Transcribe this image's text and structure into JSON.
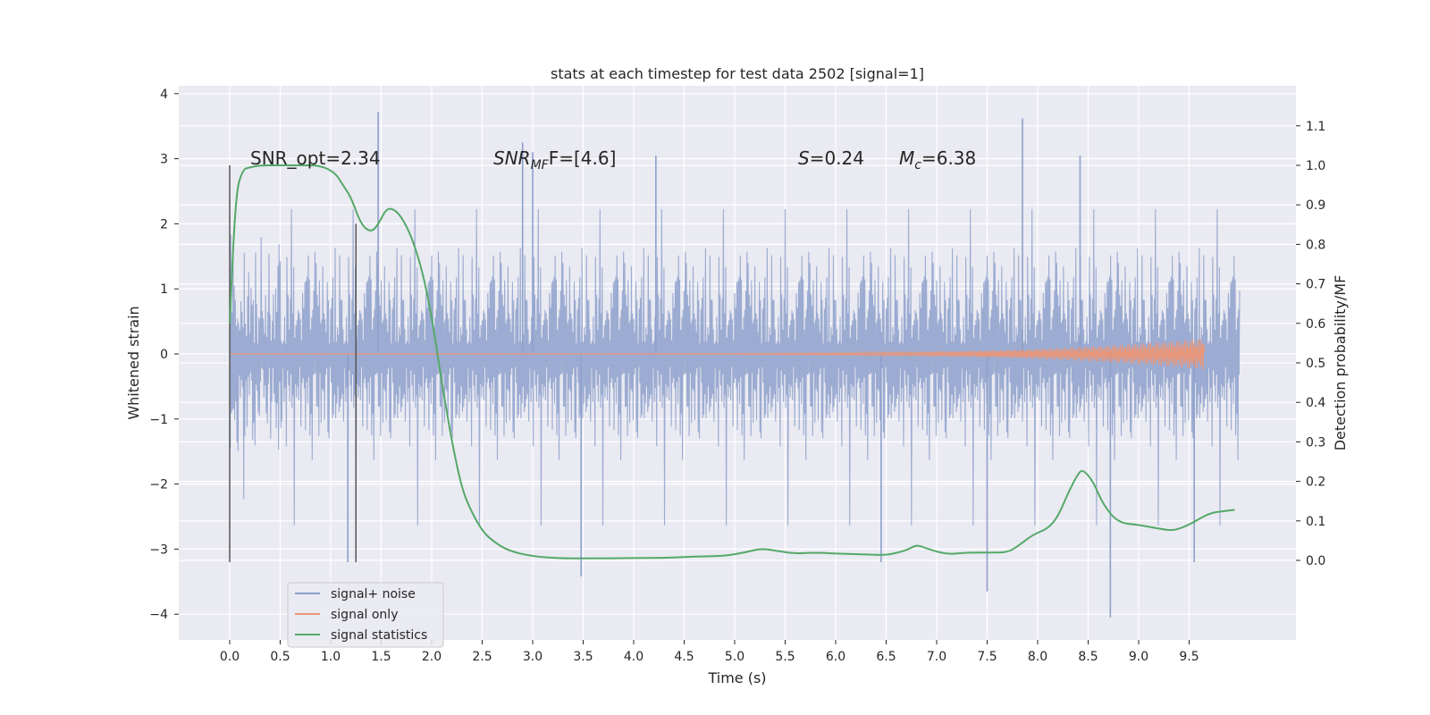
{
  "chart_data": {
    "type": "line",
    "title": "stats at each timestep for test data 2502 [signal=1]",
    "xlabel": "Time (s)",
    "ylabel_left": "Whitened strain",
    "ylabel_right": "Detection probability/MF",
    "xlim": [
      -0.5,
      10.5
    ],
    "ylim_left": [
      -4.4,
      4.1
    ],
    "ylim_right": [
      -0.2,
      1.2
    ],
    "grid": true,
    "legend_position": "lower-left",
    "x_ticks": [
      "0.0",
      "0.5",
      "1.0",
      "1.5",
      "2.0",
      "2.5",
      "3.0",
      "3.5",
      "4.0",
      "4.5",
      "5.0",
      "5.5",
      "6.0",
      "6.5",
      "7.0",
      "7.5",
      "8.0",
      "8.5",
      "9.0",
      "9.5"
    ],
    "y_left_ticks": [
      "−4",
      "−3",
      "−2",
      "−1",
      "0",
      "1",
      "2",
      "3",
      "4"
    ],
    "y_right_ticks": [
      "0.0",
      "0.1",
      "0.2",
      "0.3",
      "0.4",
      "0.5",
      "0.6",
      "0.7",
      "0.8",
      "0.9",
      "1.0",
      "1.1"
    ],
    "annotations": [
      {
        "key": "snr_opt",
        "label": "SNR_opt=2.34"
      },
      {
        "key": "snr_mf",
        "label_main": "SNR",
        "label_sub": "MF",
        "label_rest": "F=[4.6]"
      },
      {
        "key": "s",
        "label_italic": "S",
        "label_rest": "=0.24"
      },
      {
        "key": "mc",
        "label_italic": "M",
        "label_sub": "c",
        "label_rest": "=6.38"
      }
    ],
    "vertical_markers": [
      {
        "x": 0.0,
        "y_range": [
          -3.2,
          2.9
        ]
      },
      {
        "x": 1.25,
        "y_range": [
          -3.2,
          2.0
        ]
      }
    ],
    "series": [
      {
        "name": "signal+ noise",
        "color": "#8da0cb",
        "kind": "noise_band",
        "x_range": [
          0.0,
          10.0
        ],
        "typical_envelope": [
          -1.5,
          1.7
        ],
        "peaks": [
          {
            "x": 1.47,
            "y": 3.72
          },
          {
            "x": 7.85,
            "y": 3.62
          },
          {
            "x": 2.9,
            "y": 3.25
          },
          {
            "x": 3.0,
            "y": 3.1
          },
          {
            "x": 8.42,
            "y": 3.05
          },
          {
            "x": 4.22,
            "y": 3.05
          },
          {
            "x": 8.72,
            "y": -4.05
          },
          {
            "x": 7.5,
            "y": -3.65
          },
          {
            "x": 3.48,
            "y": -3.42
          },
          {
            "x": 1.17,
            "y": -3.2
          },
          {
            "x": 9.55,
            "y": -3.2
          },
          {
            "x": 6.45,
            "y": -3.2
          }
        ]
      },
      {
        "name": "signal only",
        "color": "#e8967a",
        "kind": "chirp",
        "x_range": [
          0.0,
          9.65
        ],
        "amplitude_at_end": 0.24
      },
      {
        "name": "signal statistics",
        "color": "#55a868",
        "axis": "right",
        "x": [
          0.0,
          0.06,
          0.13,
          0.2,
          0.3,
          0.5,
          0.7,
          0.9,
          1.05,
          1.12,
          1.2,
          1.3,
          1.4,
          1.47,
          1.55,
          1.62,
          1.7,
          1.8,
          1.9,
          2.0,
          2.1,
          2.2,
          2.3,
          2.4,
          2.5,
          2.6,
          2.75,
          3.0,
          3.3,
          3.6,
          4.0,
          4.3,
          4.6,
          4.9,
          5.1,
          5.25,
          5.4,
          5.6,
          5.8,
          6.0,
          6.3,
          6.5,
          6.7,
          6.8,
          6.9,
          7.1,
          7.3,
          7.5,
          7.7,
          7.8,
          7.95,
          8.1,
          8.2,
          8.3,
          8.4,
          8.45,
          8.55,
          8.65,
          8.8,
          9.0,
          9.2,
          9.35,
          9.5,
          9.7,
          9.85,
          9.95
        ],
        "values": [
          0.6,
          0.93,
          0.99,
          0.995,
          1.0,
          1.0,
          1.0,
          1.0,
          0.98,
          0.95,
          0.92,
          0.85,
          0.83,
          0.85,
          0.89,
          0.89,
          0.87,
          0.82,
          0.74,
          0.62,
          0.45,
          0.3,
          0.18,
          0.12,
          0.075,
          0.05,
          0.025,
          0.01,
          0.005,
          0.005,
          0.006,
          0.006,
          0.01,
          0.011,
          0.02,
          0.03,
          0.025,
          0.017,
          0.02,
          0.017,
          0.015,
          0.013,
          0.025,
          0.04,
          0.03,
          0.015,
          0.02,
          0.02,
          0.02,
          0.035,
          0.065,
          0.08,
          0.11,
          0.17,
          0.22,
          0.23,
          0.2,
          0.14,
          0.095,
          0.09,
          0.08,
          0.075,
          0.09,
          0.12,
          0.125,
          0.128
        ]
      }
    ]
  }
}
